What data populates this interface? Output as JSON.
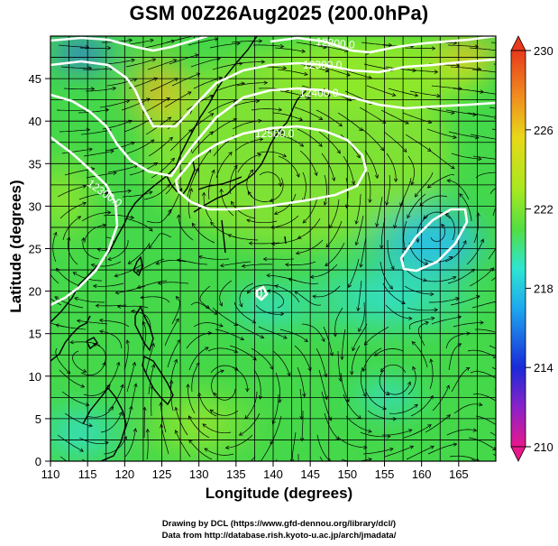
{
  "title": "GSM 00Z26Aug2025 (200.0hPa)",
  "xlabel": "Longitude (degrees)",
  "ylabel": "Latitude  (degrees)",
  "credits": {
    "line1": "Drawing by DCL (https://www.gfd-dennou.org/library/dcl/)",
    "line2": "Data from http://database.rish.kyoto-u.ac.jp/arch/jmadata/"
  },
  "colors": {
    "land_outline": "#000000",
    "contour": "#ffffff",
    "streamline": "#000000",
    "grid": "#000000"
  },
  "chart_data": {
    "type": "heatmap",
    "x_axis": {
      "range": [
        110,
        170
      ],
      "ticks": [
        "110",
        "115",
        "120",
        "125",
        "130",
        "135",
        "140",
        "145",
        "150",
        "155",
        "160",
        "165"
      ]
    },
    "y_axis": {
      "range": [
        0,
        50
      ],
      "ticks": [
        "0",
        "5",
        "10",
        "15",
        "20",
        "25",
        "30",
        "35",
        "40",
        "45"
      ]
    },
    "grid": true,
    "overlays": [
      "streamlines",
      "geopotential height contours",
      "coastlines"
    ],
    "contour_labels": [
      "12200.0",
      "12300.0",
      "12400.0",
      "12500.0",
      "12300.0",
      "0"
    ],
    "colorbar": {
      "range": [
        210,
        230
      ],
      "ticks": [
        "230",
        "226",
        "222",
        "218",
        "214",
        "210"
      ],
      "colors": [
        "#e8188c",
        "#8a22c8",
        "#1a2ad8",
        "#1ea8ee",
        "#2ee6d0",
        "#52de42",
        "#a8e820",
        "#e8d818",
        "#f09020",
        "#e83a1c"
      ]
    }
  }
}
